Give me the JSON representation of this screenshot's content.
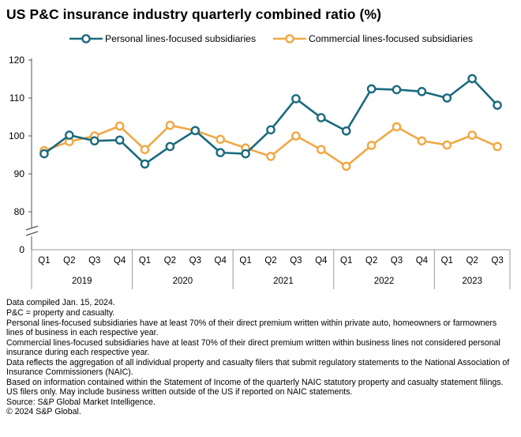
{
  "title": "US P&C insurance industry quarterly combined ratio (%)",
  "chart_data": {
    "type": "line",
    "title": "US P&C insurance industry quarterly combined ratio (%)",
    "xlabel": "",
    "ylabel": "",
    "ylim": [
      80,
      120
    ],
    "yticks": [
      80,
      90,
      100,
      110,
      120
    ],
    "y_break_label": "0",
    "legend_position": "top",
    "grid": false,
    "quarters": [
      "Q1",
      "Q2",
      "Q3",
      "Q4",
      "Q1",
      "Q2",
      "Q3",
      "Q4",
      "Q1",
      "Q2",
      "Q3",
      "Q4",
      "Q1",
      "Q2",
      "Q3",
      "Q4",
      "Q1",
      "Q2",
      "Q3"
    ],
    "years": [
      {
        "label": "2019",
        "quarters": 4
      },
      {
        "label": "2020",
        "quarters": 4
      },
      {
        "label": "2021",
        "quarters": 4
      },
      {
        "label": "2022",
        "quarters": 4
      },
      {
        "label": "2023",
        "quarters": 3
      }
    ],
    "series": [
      {
        "name": "Personal lines-focused subsidiaries",
        "color": "#1a6a7e",
        "values": [
          95.3,
          100.2,
          98.7,
          98.9,
          92.6,
          97.2,
          101.4,
          95.6,
          95.3,
          101.6,
          109.8,
          104.8,
          101.3,
          112.4,
          112.2,
          111.7,
          110.0,
          115.1,
          108.1
        ]
      },
      {
        "name": "Commercial lines-focused subsidiaries",
        "color": "#f0a843",
        "values": [
          96.1,
          98.5,
          100.0,
          102.6,
          96.4,
          102.8,
          101.4,
          99.1,
          96.8,
          94.6,
          100.0,
          96.4,
          92.0,
          97.5,
          102.4,
          98.7,
          97.6,
          100.2,
          97.2
        ]
      }
    ]
  },
  "notes": [
    "Data compiled Jan. 15, 2024.",
    "P&C = property and casualty.",
    "Personal lines-focused subsidiaries have at least 70% of their direct premium written within private auto, homeowners or farmowners lines of business in each respective year.",
    "Commercial lines-focused subsidiaries have at least 70% of their direct premium written within business lines not considered personal insurance during each respective year.",
    "Data reflects the aggregation of all individual property and casualty filers that submit regulatory statements to the National Association of Insurance Commissioners (NAIC).",
    "Based on information contained within the Statement of Income of the quarterly NAIC statutory property and casualty statement filings. US filers only. May include business written outside of the US if reported on NAIC statements.",
    "Source: S&P Global Market Intelligence.",
    "© 2024 S&P Global."
  ]
}
